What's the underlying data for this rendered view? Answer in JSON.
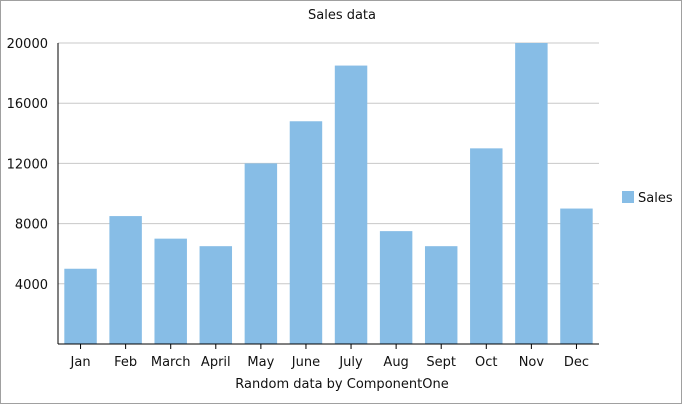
{
  "chart_data": {
    "type": "bar",
    "title": "Sales data",
    "xlabel": "Random data by ComponentOne",
    "ylabel": "",
    "categories": [
      "Jan",
      "Feb",
      "March",
      "April",
      "May",
      "June",
      "July",
      "Aug",
      "Sept",
      "Oct",
      "Nov",
      "Dec"
    ],
    "series": [
      {
        "name": "Sales",
        "values": [
          5000,
          8500,
          7000,
          6500,
          12000,
          14800,
          18500,
          7500,
          6500,
          13000,
          20000,
          9000
        ]
      }
    ],
    "ylim": [
      0,
      20000
    ],
    "yticks": [
      4000,
      8000,
      12000,
      16000,
      20000
    ],
    "grid": true,
    "legend_position": "right",
    "colors": {
      "bar": "#87bde6",
      "grid": "#c8c8c8",
      "axis": "#000000"
    }
  }
}
